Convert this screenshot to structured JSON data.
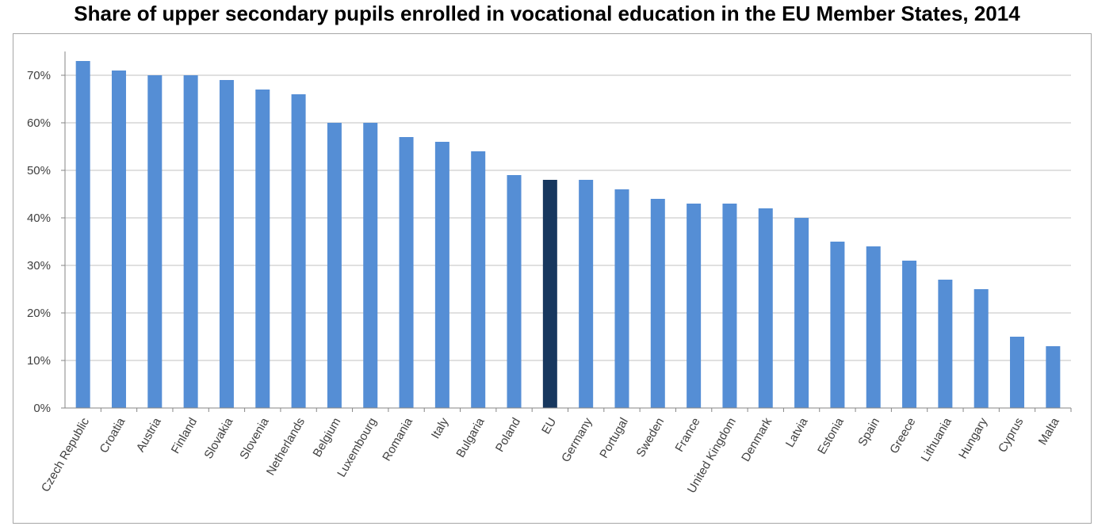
{
  "chart_data": {
    "type": "bar",
    "title": "Share of upper secondary pupils enrolled in vocational education in the EU Member States, 2014",
    "xlabel": "",
    "ylabel": "",
    "ylim": [
      0,
      75
    ],
    "yticks": [
      0,
      10,
      20,
      30,
      40,
      50,
      60,
      70
    ],
    "ytick_labels": [
      "0%",
      "10%",
      "20%",
      "30%",
      "40%",
      "50%",
      "60%",
      "70%"
    ],
    "grid": true,
    "legend": "none",
    "bar_color": "#558ed5",
    "highlight_color": "#17375e",
    "highlight_category": "EU",
    "categories": [
      "Czech Republic",
      "Croatia",
      "Austria",
      "Finland",
      "Slovakia",
      "Slovenia",
      "Netherlands",
      "Belgium",
      "Luxembourg",
      "Romania",
      "Italy",
      "Bulgaria",
      "Poland",
      "EU",
      "Germany",
      "Portugal",
      "Sweden",
      "France",
      "United Kingdom",
      "Denmark",
      "Latvia",
      "Estonia",
      "Spain",
      "Greece",
      "Lithuania",
      "Hungary",
      "Cyprus",
      "Malta"
    ],
    "values": [
      73,
      71,
      70,
      70,
      69,
      67,
      66,
      60,
      60,
      57,
      56,
      54,
      49,
      48,
      48,
      46,
      44,
      43,
      43,
      42,
      40,
      35,
      34,
      31,
      27,
      25,
      15,
      13
    ]
  }
}
